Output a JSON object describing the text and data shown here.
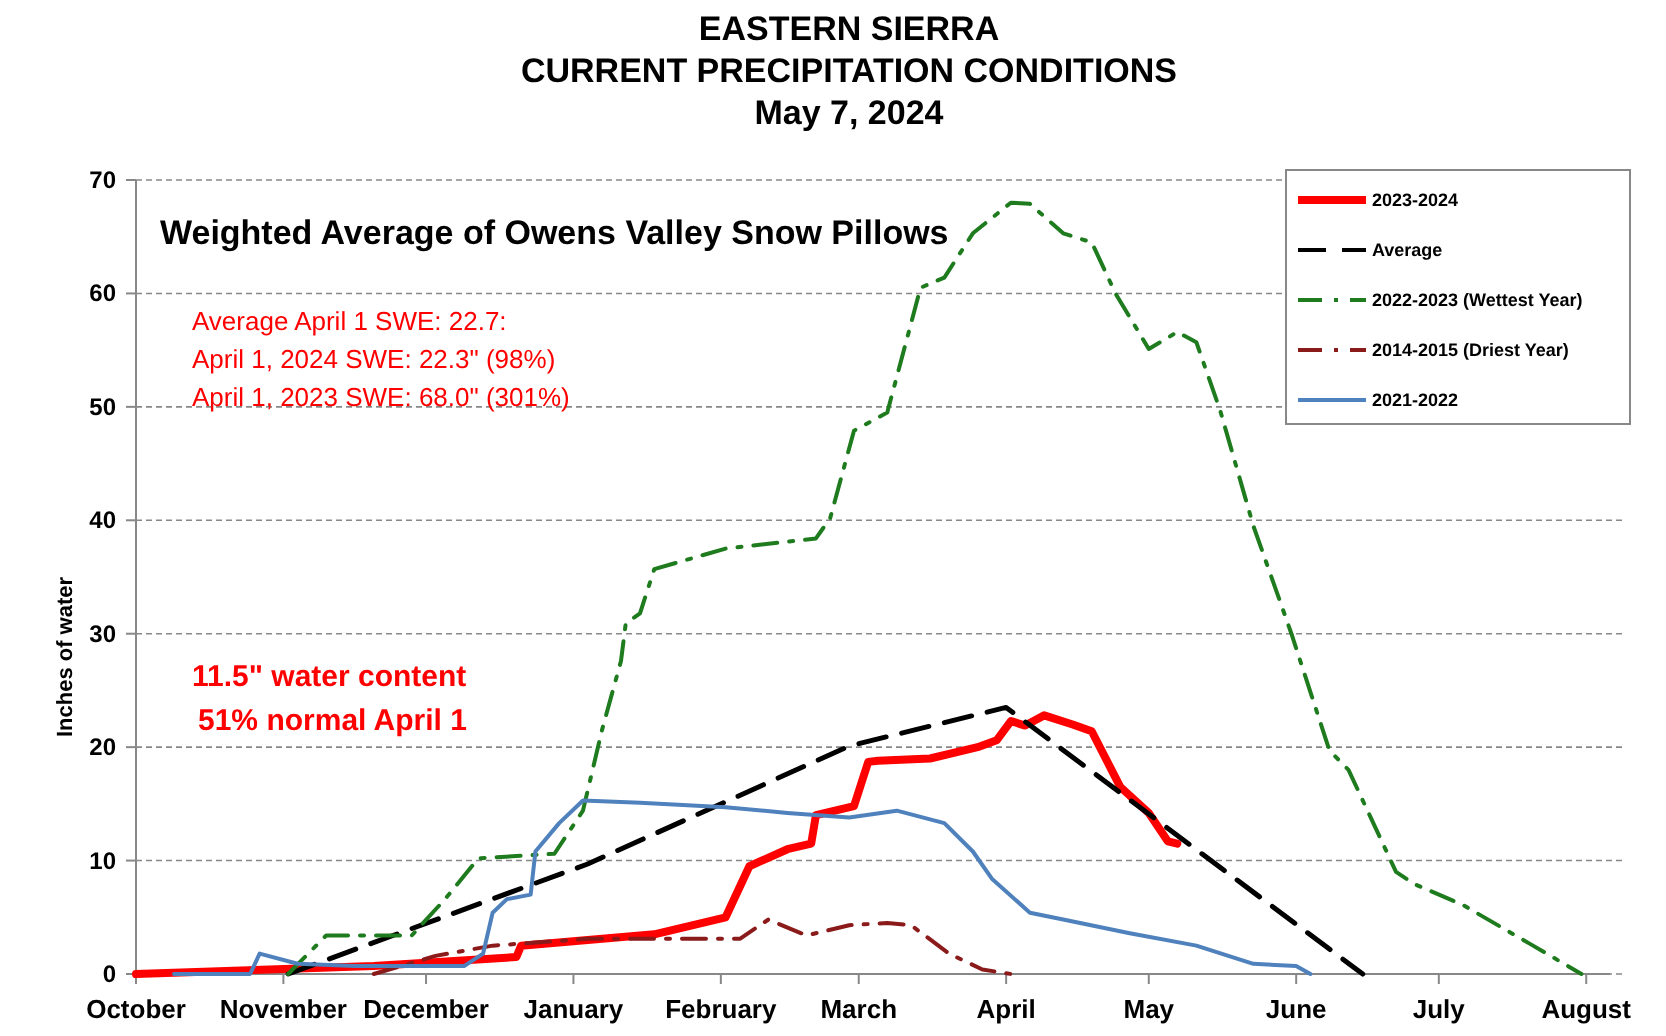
{
  "chart_data": {
    "type": "line",
    "title": "EASTERN SIERRA\nCURRENT PRECIPITATION CONDITIONS\nMay 7, 2024",
    "subtitle": "Weighted Average of Owens Valley Snow Pillows",
    "ylabel": "Inches of water",
    "annotations": [
      "Average April 1 SWE: 22.7:",
      "April 1, 2024 SWE: 22.3\" (98%)",
      "April 1, 2023 SWE: 68.0\" (301%)",
      "11.5\" water content",
      "51% normal April 1"
    ],
    "xlim": [
      "2023-10-01",
      "2024-08-06"
    ],
    "xticks": [
      {
        "value": "2023-10-01",
        "label": "October"
      },
      {
        "value": "2023-11-01",
        "label": "November"
      },
      {
        "value": "2023-12-01",
        "label": "December"
      },
      {
        "value": "2024-01-01",
        "label": "January"
      },
      {
        "value": "2024-02-01",
        "label": "February"
      },
      {
        "value": "2024-03-01",
        "label": "March"
      },
      {
        "value": "2024-04-01",
        "label": "April"
      },
      {
        "value": "2024-05-01",
        "label": "May"
      },
      {
        "value": "2024-06-01",
        "label": "June"
      },
      {
        "value": "2024-07-01",
        "label": "July"
      },
      {
        "value": "2024-08-01",
        "label": "August"
      }
    ],
    "ylim": [
      0,
      70
    ],
    "yticks": [
      0,
      10,
      20,
      30,
      40,
      50,
      60,
      70
    ],
    "grid": "y",
    "legend": "top right",
    "series": [
      {
        "name": "2023-2024",
        "color": "#ff0000",
        "line_style": "solid",
        "x": [
          "2023-10-01",
          "2023-11-20",
          "2023-12-20",
          "2023-12-21",
          "2024-01-18",
          "2024-02-02",
          "2024-02-07",
          "2024-02-15",
          "2024-02-20",
          "2024-02-21",
          "2024-02-29",
          "2024-03-03",
          "2024-03-05",
          "2024-03-16",
          "2024-03-26",
          "2024-03-30",
          "2024-04-02",
          "2024-04-05",
          "2024-04-09",
          "2024-04-15",
          "2024-04-19",
          "2024-04-25",
          "2024-05-01",
          "2024-05-05",
          "2024-05-07"
        ],
        "values": [
          0,
          0.7,
          1.5,
          2.5,
          3.5,
          5,
          9.5,
          11,
          11.5,
          14,
          14.8,
          18.7,
          18.8,
          19,
          20,
          20.6,
          22.3,
          21.9,
          22.8,
          22,
          21.4,
          16.5,
          14.2,
          11.7,
          11.5
        ]
      },
      {
        "name": "Average",
        "color": "#000000",
        "line_style": "dashed",
        "x": [
          "2023-11-02",
          "2024-01-04",
          "2024-02-28",
          "2024-04-01",
          "2024-06-15"
        ],
        "values": [
          0,
          9.7,
          20.1,
          23.5,
          0
        ]
      },
      {
        "name": "2022-2023 (Wettest Year)",
        "color": "#1e7b1e",
        "line_style": "dashdot",
        "x": [
          "2023-11-02",
          "2023-11-10",
          "2023-11-28",
          "2023-12-05",
          "2023-12-12",
          "2023-12-28",
          "2024-01-03",
          "2024-01-07",
          "2024-01-11",
          "2024-01-12",
          "2024-01-15",
          "2024-01-18",
          "2024-02-02",
          "2024-02-21",
          "2024-02-24",
          "2024-02-29",
          "2024-03-07",
          "2024-03-14",
          "2024-03-19",
          "2024-03-25",
          "2024-04-02",
          "2024-04-06",
          "2024-04-13",
          "2024-04-19",
          "2024-04-24",
          "2024-05-01",
          "2024-05-07",
          "2024-05-11",
          "2024-05-16",
          "2024-05-23",
          "2024-05-31",
          "2024-06-08",
          "2024-06-12",
          "2024-06-22",
          "2024-06-26",
          "2024-07-06",
          "2024-07-20",
          "2024-07-31"
        ],
        "values": [
          0,
          3.4,
          3.4,
          6.6,
          10.2,
          10.6,
          14.4,
          21.5,
          27.6,
          30.9,
          31.8,
          35.7,
          37.5,
          38.4,
          40.2,
          47.9,
          49.5,
          60.5,
          61.4,
          65.3,
          68,
          67.9,
          65.3,
          64.5,
          60,
          55.1,
          56.6,
          55.7,
          49.7,
          39.5,
          30,
          19.7,
          18,
          9,
          7.9,
          6.1,
          2.7,
          0
        ]
      },
      {
        "name": "2014-2015 (Driest Year)",
        "color": "#8b1a1a",
        "line_style": "dashdot",
        "x": [
          "2023-11-20",
          "2023-12-03",
          "2023-12-15",
          "2024-01-04",
          "2024-02-05",
          "2024-02-11",
          "2024-02-19",
          "2024-02-28",
          "2024-03-07",
          "2024-03-12",
          "2024-03-20",
          "2024-03-27",
          "2024-04-02"
        ],
        "values": [
          0,
          1.6,
          2.5,
          3.1,
          3.1,
          4.8,
          3.4,
          4.3,
          4.5,
          4.3,
          1.8,
          0.4,
          0
        ]
      },
      {
        "name": "2021-2022",
        "color": "#4f81bd",
        "line_style": "solid",
        "x": [
          "2023-10-09",
          "2023-10-25",
          "2023-10-27",
          "2023-11-04",
          "2023-11-16",
          "2023-12-09",
          "2023-12-13",
          "2023-12-15",
          "2023-12-18",
          "2023-12-23",
          "2023-12-24",
          "2023-12-29",
          "2024-01-03",
          "2024-01-15",
          "2024-02-02",
          "2024-02-15",
          "2024-02-28",
          "2024-03-09",
          "2024-03-19",
          "2024-03-25",
          "2024-03-29",
          "2024-04-06",
          "2024-04-13",
          "2024-04-27",
          "2024-05-11",
          "2024-05-23",
          "2024-06-01",
          "2024-06-04"
        ],
        "values": [
          0,
          0,
          1.8,
          0.9,
          0.7,
          0.7,
          1.8,
          5.4,
          6.6,
          7,
          10.8,
          13.3,
          15.3,
          15.1,
          14.7,
          14.2,
          13.8,
          14.4,
          13.3,
          10.8,
          8.4,
          5.4,
          4.8,
          3.6,
          2.5,
          0.9,
          0.7,
          0
        ]
      }
    ]
  }
}
